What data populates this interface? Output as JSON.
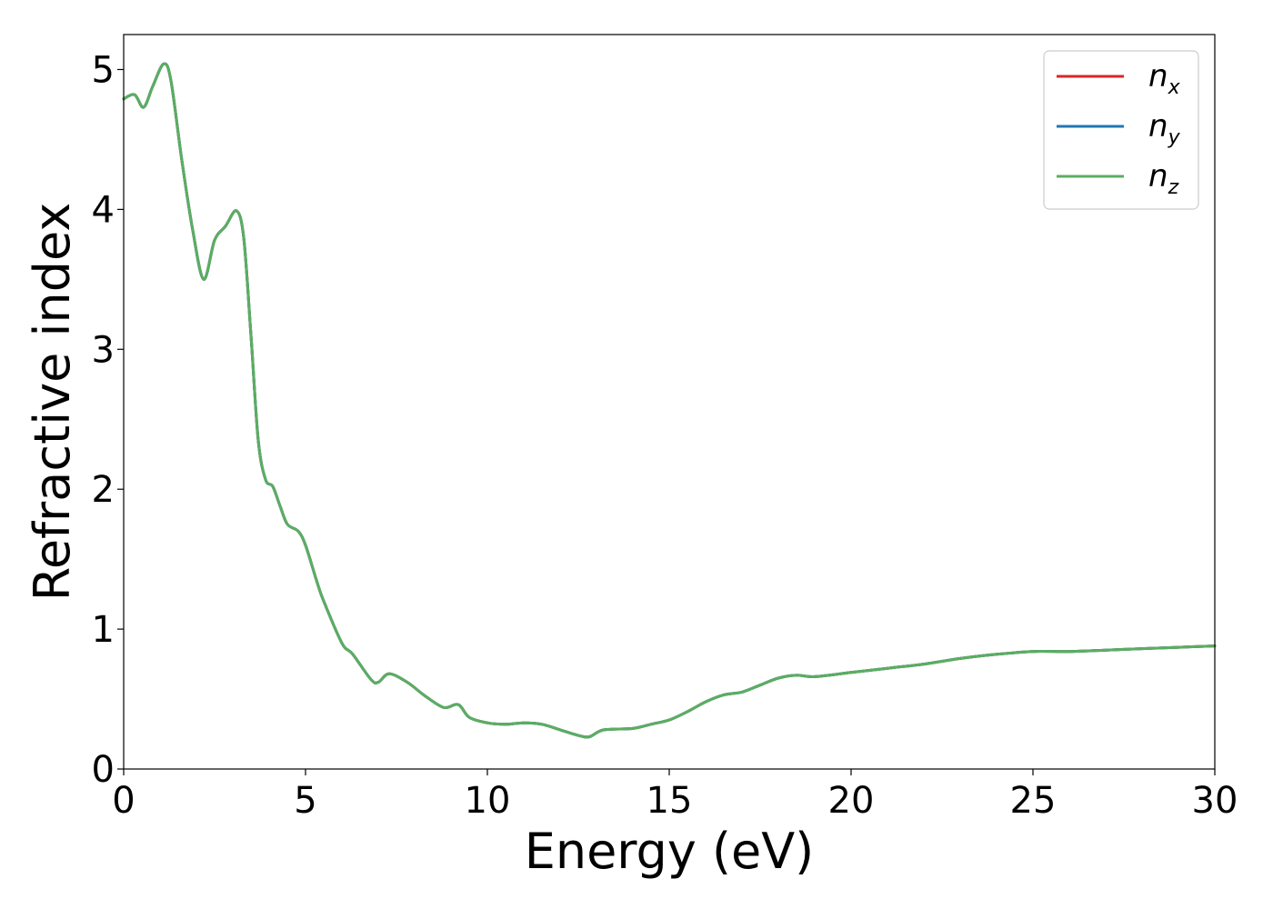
{
  "chart_data": {
    "type": "line",
    "title": "",
    "xlabel": "Energy (eV)",
    "ylabel": "Refractive index",
    "xlim": [
      0,
      30
    ],
    "ylim": [
      0,
      5.25
    ],
    "xticks": [
      "0",
      "5",
      "10",
      "15",
      "20",
      "25",
      "30"
    ],
    "yticks": [
      "0",
      "1",
      "2",
      "3",
      "4",
      "5"
    ],
    "grid": false,
    "legend_position": "top-right",
    "series": [
      {
        "name": "n",
        "subscript": "x",
        "color": "#d62728",
        "x": [
          0,
          0.3,
          0.55,
          0.8,
          1.1,
          1.3,
          1.6,
          1.9,
          2.2,
          2.5,
          2.8,
          3.1,
          3.3,
          3.5,
          3.7,
          3.9,
          4.1,
          4.3,
          4.5,
          4.8,
          5.0,
          5.3,
          5.5,
          6.0,
          6.3,
          6.8,
          7.0,
          7.3,
          7.8,
          8.3,
          8.8,
          9.2,
          9.5,
          10.0,
          10.5,
          11.0,
          11.5,
          12.0,
          12.5,
          12.8,
          13.2,
          14.0,
          14.5,
          15.0,
          15.5,
          16.0,
          16.5,
          17.0,
          17.5,
          18.0,
          18.5,
          19.0,
          20.0,
          21.0,
          22.0,
          23.0,
          24.0,
          25.0,
          26.0,
          27.0,
          28.0,
          29.0,
          30.0
        ],
        "values": [
          4.79,
          4.82,
          4.73,
          4.88,
          5.04,
          4.92,
          4.35,
          3.85,
          3.5,
          3.78,
          3.88,
          3.99,
          3.8,
          3.1,
          2.35,
          2.07,
          2.02,
          1.88,
          1.75,
          1.7,
          1.6,
          1.35,
          1.2,
          0.9,
          0.82,
          0.64,
          0.62,
          0.68,
          0.62,
          0.52,
          0.44,
          0.46,
          0.37,
          0.33,
          0.32,
          0.33,
          0.32,
          0.28,
          0.24,
          0.23,
          0.28,
          0.29,
          0.32,
          0.35,
          0.41,
          0.48,
          0.53,
          0.55,
          0.6,
          0.65,
          0.67,
          0.66,
          0.69,
          0.72,
          0.75,
          0.79,
          0.82,
          0.84,
          0.84,
          0.85,
          0.86,
          0.87,
          0.88
        ]
      },
      {
        "name": "n",
        "subscript": "y",
        "color": "#1f77b4",
        "x": [
          0,
          0.3,
          0.55,
          0.8,
          1.1,
          1.3,
          1.6,
          1.9,
          2.2,
          2.5,
          2.8,
          3.1,
          3.3,
          3.5,
          3.7,
          3.9,
          4.1,
          4.3,
          4.5,
          4.8,
          5.0,
          5.3,
          5.5,
          6.0,
          6.3,
          6.8,
          7.0,
          7.3,
          7.8,
          8.3,
          8.8,
          9.2,
          9.5,
          10.0,
          10.5,
          11.0,
          11.5,
          12.0,
          12.5,
          12.8,
          13.2,
          14.0,
          14.5,
          15.0,
          15.5,
          16.0,
          16.5,
          17.0,
          17.5,
          18.0,
          18.5,
          19.0,
          20.0,
          21.0,
          22.0,
          23.0,
          24.0,
          25.0,
          26.0,
          27.0,
          28.0,
          29.0,
          30.0
        ],
        "values": [
          4.79,
          4.82,
          4.73,
          4.88,
          5.04,
          4.92,
          4.35,
          3.85,
          3.5,
          3.78,
          3.88,
          3.99,
          3.8,
          3.1,
          2.35,
          2.07,
          2.02,
          1.88,
          1.75,
          1.7,
          1.6,
          1.35,
          1.2,
          0.9,
          0.82,
          0.64,
          0.62,
          0.68,
          0.62,
          0.52,
          0.44,
          0.46,
          0.37,
          0.33,
          0.32,
          0.33,
          0.32,
          0.28,
          0.24,
          0.23,
          0.28,
          0.29,
          0.32,
          0.35,
          0.41,
          0.48,
          0.53,
          0.55,
          0.6,
          0.65,
          0.67,
          0.66,
          0.69,
          0.72,
          0.75,
          0.79,
          0.82,
          0.84,
          0.84,
          0.85,
          0.86,
          0.87,
          0.88
        ]
      },
      {
        "name": "n",
        "subscript": "z",
        "color": "#5aae61",
        "x": [
          0,
          0.3,
          0.55,
          0.8,
          1.1,
          1.3,
          1.6,
          1.9,
          2.2,
          2.5,
          2.8,
          3.1,
          3.3,
          3.5,
          3.7,
          3.9,
          4.1,
          4.3,
          4.5,
          4.8,
          5.0,
          5.3,
          5.5,
          6.0,
          6.3,
          6.8,
          7.0,
          7.3,
          7.8,
          8.3,
          8.8,
          9.2,
          9.5,
          10.0,
          10.5,
          11.0,
          11.5,
          12.0,
          12.5,
          12.8,
          13.2,
          14.0,
          14.5,
          15.0,
          15.5,
          16.0,
          16.5,
          17.0,
          17.5,
          18.0,
          18.5,
          19.0,
          20.0,
          21.0,
          22.0,
          23.0,
          24.0,
          25.0,
          26.0,
          27.0,
          28.0,
          29.0,
          30.0
        ],
        "values": [
          4.79,
          4.82,
          4.73,
          4.88,
          5.04,
          4.92,
          4.35,
          3.85,
          3.5,
          3.78,
          3.88,
          3.99,
          3.8,
          3.1,
          2.35,
          2.07,
          2.02,
          1.88,
          1.75,
          1.7,
          1.6,
          1.35,
          1.2,
          0.9,
          0.82,
          0.64,
          0.62,
          0.68,
          0.62,
          0.52,
          0.44,
          0.46,
          0.37,
          0.33,
          0.32,
          0.33,
          0.32,
          0.28,
          0.24,
          0.23,
          0.28,
          0.29,
          0.32,
          0.35,
          0.41,
          0.48,
          0.53,
          0.55,
          0.6,
          0.65,
          0.67,
          0.66,
          0.69,
          0.72,
          0.75,
          0.79,
          0.82,
          0.84,
          0.84,
          0.85,
          0.86,
          0.87,
          0.88
        ]
      }
    ]
  }
}
